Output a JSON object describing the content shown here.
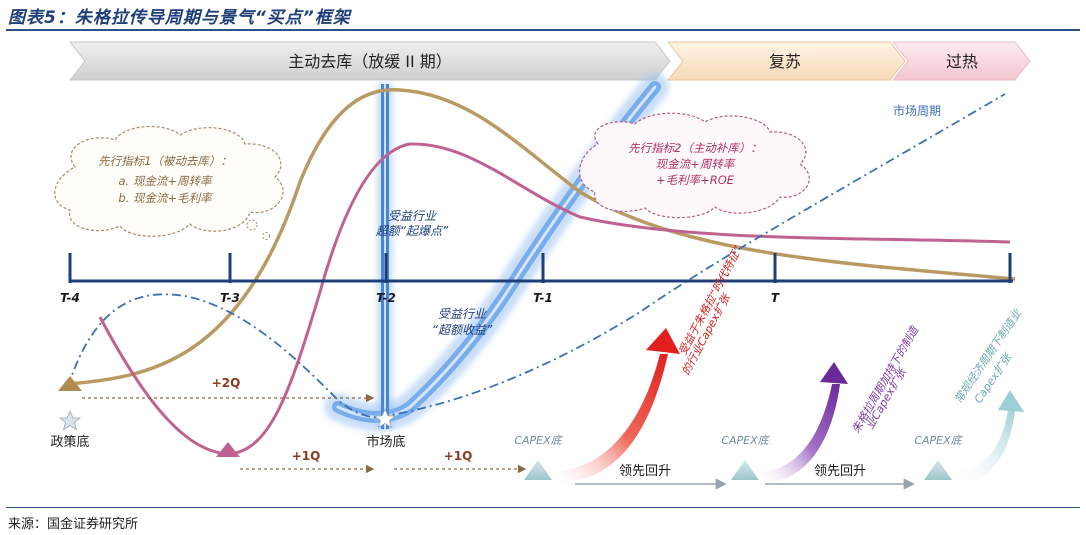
{
  "figure_title": "图表5：朱格拉传导周期与景气“买点”框架",
  "source": "来源：国金证券研究所",
  "phases": [
    {
      "label": "主动去库（放缓 II 期）",
      "color": "#d9d9d9"
    },
    {
      "label": "复苏",
      "color": "#fbe6cf"
    },
    {
      "label": "过热",
      "color": "#f8d6dc"
    }
  ],
  "timeline_ticks": [
    "T-4",
    "T-3",
    "T-2",
    "T-1",
    "T"
  ],
  "series_labels": {
    "market_cycle": "市场周期"
  },
  "bubbles": {
    "leading1": [
      "先行指标1（被动去库）：",
      "a. 现金流+周转率",
      "b. 现金流+毛利率"
    ],
    "leading2": [
      "先行指标2（主动补库）：",
      "现金流+周转率",
      "+毛利率+ROE"
    ]
  },
  "annotations": {
    "explode_point": [
      "受益行业",
      "超额“起爆点”"
    ],
    "excess_return": [
      "受益行业",
      "“超额收益”"
    ],
    "policy_bottom": "政策底",
    "market_bottom": "市场底",
    "lead_plus2q": "+2Q",
    "lead_plus1q_a": "+1Q",
    "lead_plus1q_b": "+1Q"
  },
  "capex": {
    "bottom_label": "CAPEX底",
    "lead_rise": "领先回升",
    "arrow_red": [
      "受益于朱格拉“时代特征”",
      "的行业Capex扩张"
    ],
    "arrow_purple": [
      "朱格拉周期加持下的制造",
      "业Capex扩张"
    ],
    "arrow_teal": [
      "常规经济周期下制造业",
      "Capex扩张"
    ]
  },
  "colors": {
    "tan_curve": "#b99a63",
    "pink_curve": "#c0628f",
    "blue_bar": "#4a86d8",
    "dashdot": "#3d6fb5",
    "timeline": "#1f3f7a",
    "red_arrow": "#e0201e",
    "purple_arrow": "#7b3aa8",
    "teal_arrow": "#9ccfd3"
  }
}
